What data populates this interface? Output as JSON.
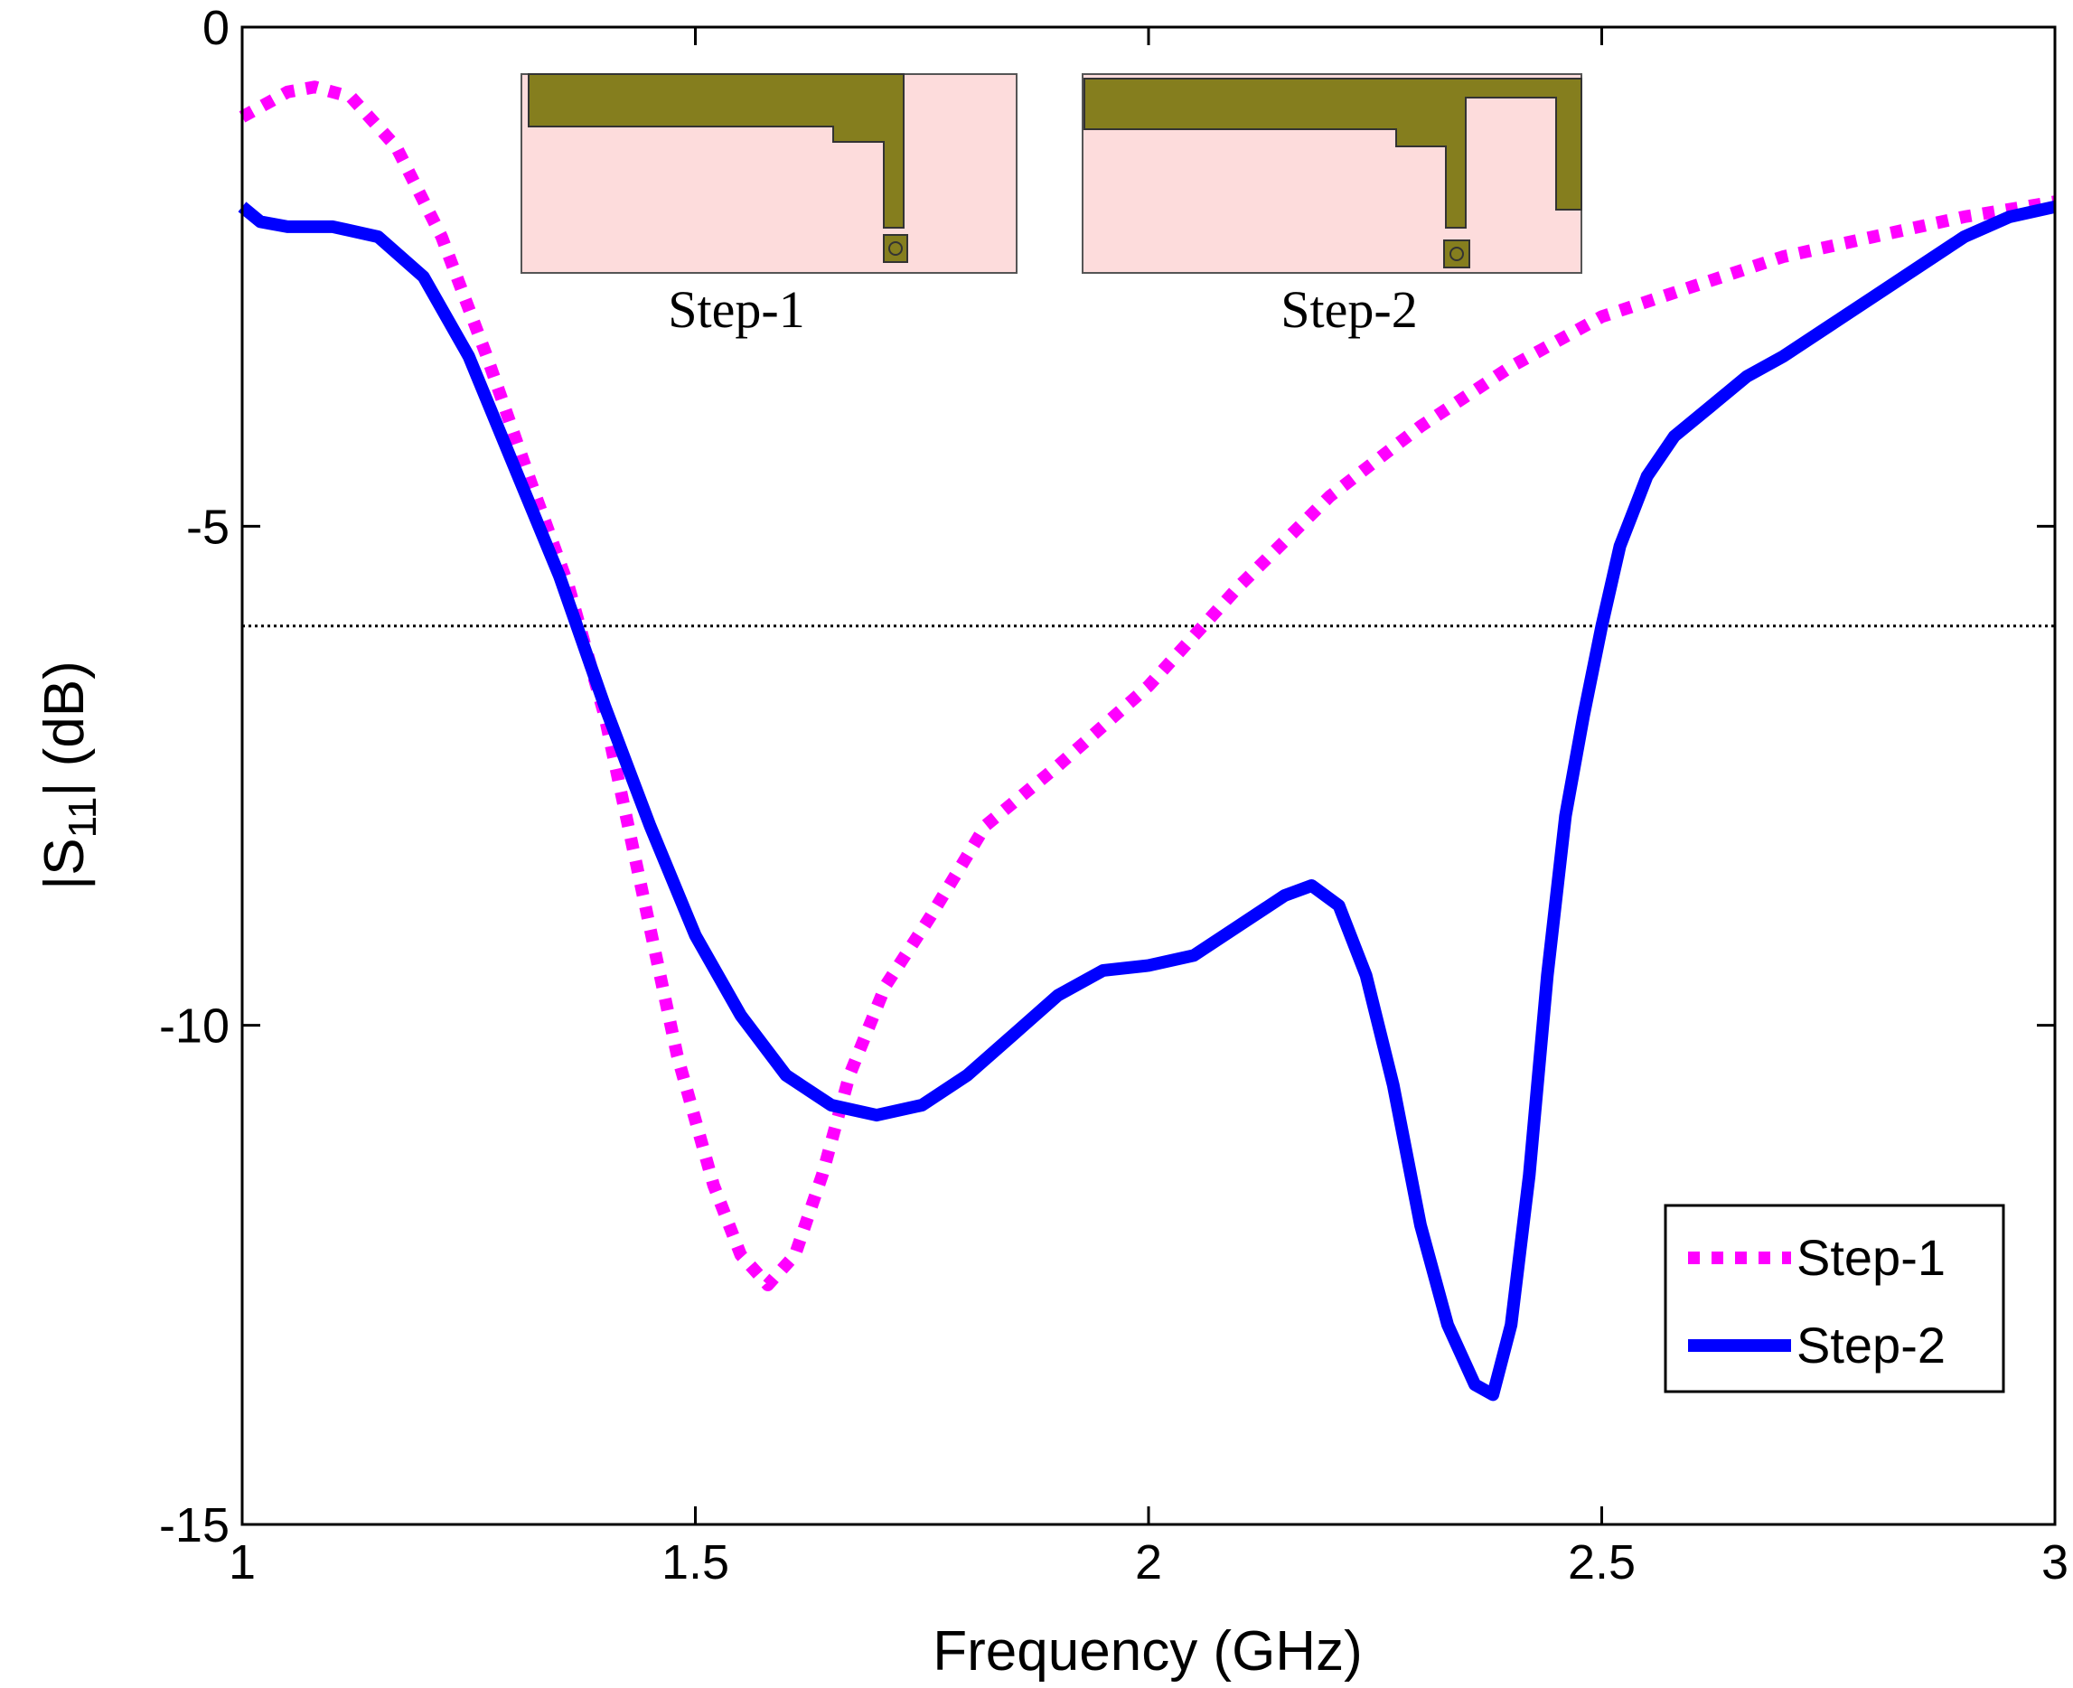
{
  "chart_data": {
    "type": "line",
    "title": "",
    "xlabel": "Frequency (GHz)",
    "ylabel_main": "|S",
    "ylabel_sub": "11",
    "ylabel_tail": "| (dB)",
    "xlim": [
      1,
      3
    ],
    "ylim": [
      -15,
      0
    ],
    "xticks": [
      1,
      1.5,
      2,
      2.5,
      3
    ],
    "xtick_labels": [
      "1",
      "1.5",
      "2",
      "2.5",
      "3"
    ],
    "yticks": [
      0,
      -5,
      -10,
      -15
    ],
    "ytick_labels": [
      "0",
      "-5",
      "-10",
      "-15"
    ],
    "reference_line": {
      "y": -6,
      "style": "dotted",
      "color": "#000000"
    },
    "legend_position": "bottom-right",
    "series": [
      {
        "name": "Step-1",
        "style": "dotted",
        "color": "#ff00ff",
        "x": [
          1.0,
          1.05,
          1.08,
          1.12,
          1.17,
          1.22,
          1.27,
          1.32,
          1.36,
          1.4,
          1.44,
          1.48,
          1.52,
          1.55,
          1.58,
          1.61,
          1.64,
          1.67,
          1.71,
          1.76,
          1.82,
          1.9,
          2.0,
          2.1,
          2.2,
          2.3,
          2.4,
          2.5,
          2.6,
          2.7,
          2.8,
          2.9,
          3.0
        ],
        "values": [
          -0.9,
          -0.65,
          -0.6,
          -0.7,
          -1.2,
          -2.1,
          -3.3,
          -4.6,
          -5.6,
          -6.9,
          -8.6,
          -10.3,
          -11.6,
          -12.3,
          -12.6,
          -12.3,
          -11.5,
          -10.5,
          -9.6,
          -8.9,
          -8.0,
          -7.4,
          -6.6,
          -5.6,
          -4.7,
          -4.0,
          -3.4,
          -2.9,
          -2.6,
          -2.3,
          -2.1,
          -1.9,
          -1.75
        ]
      },
      {
        "name": "Step-2",
        "style": "solid",
        "color": "#0000ff",
        "x": [
          1.0,
          1.02,
          1.05,
          1.1,
          1.15,
          1.2,
          1.25,
          1.3,
          1.35,
          1.4,
          1.45,
          1.5,
          1.55,
          1.6,
          1.65,
          1.7,
          1.75,
          1.8,
          1.85,
          1.9,
          1.95,
          2.0,
          2.05,
          2.1,
          2.15,
          2.18,
          2.21,
          2.24,
          2.27,
          2.3,
          2.33,
          2.36,
          2.38,
          2.4,
          2.42,
          2.44,
          2.46,
          2.48,
          2.5,
          2.52,
          2.55,
          2.58,
          2.62,
          2.66,
          2.7,
          2.75,
          2.8,
          2.85,
          2.9,
          2.95,
          3.0
        ],
        "values": [
          -1.8,
          -1.95,
          -2.0,
          -2.0,
          -2.1,
          -2.5,
          -3.3,
          -4.4,
          -5.5,
          -6.8,
          -8.0,
          -9.1,
          -9.9,
          -10.5,
          -10.8,
          -10.9,
          -10.8,
          -10.5,
          -10.1,
          -9.7,
          -9.45,
          -9.4,
          -9.3,
          -9.0,
          -8.7,
          -8.6,
          -8.8,
          -9.5,
          -10.6,
          -12.0,
          -13.0,
          -13.6,
          -13.7,
          -13.0,
          -11.5,
          -9.5,
          -7.9,
          -6.9,
          -6.0,
          -5.2,
          -4.5,
          -4.1,
          -3.8,
          -3.5,
          -3.3,
          -3.0,
          -2.7,
          -2.4,
          -2.1,
          -1.9,
          -1.8
        ]
      }
    ],
    "insets": [
      {
        "caption": "Step-1"
      },
      {
        "caption": "Step-2"
      }
    ]
  },
  "colors": {
    "substrate": "#fddcdc",
    "patch": "#857e1e",
    "step1": "#ff00ff",
    "step2": "#0000ff"
  }
}
